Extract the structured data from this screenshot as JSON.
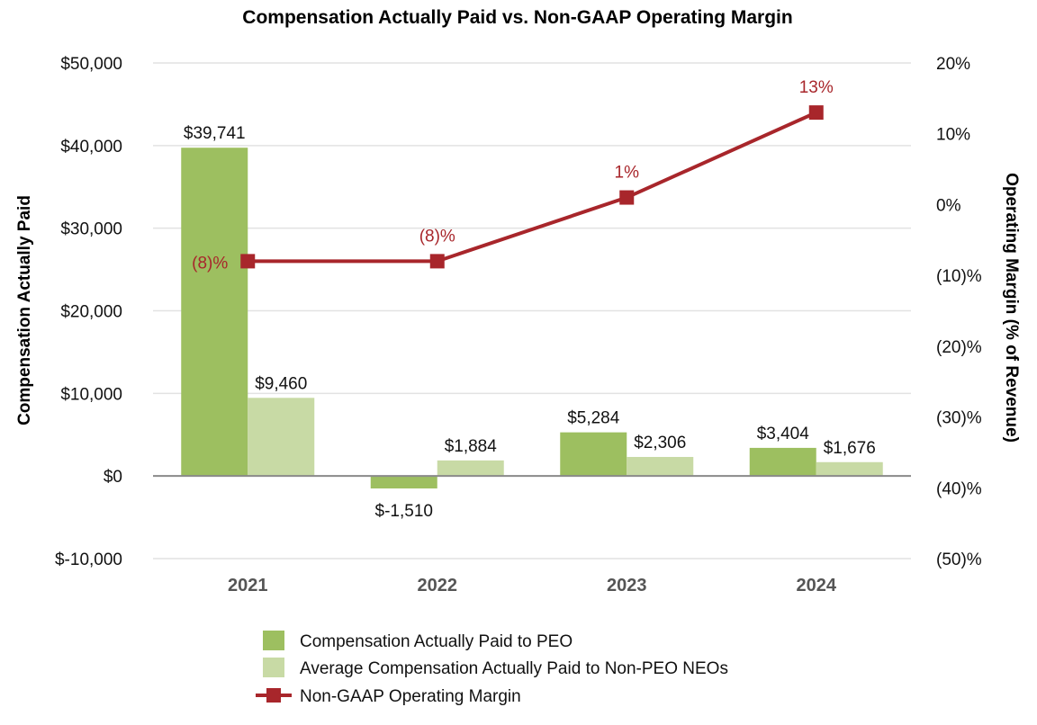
{
  "chart_data": {
    "type": "bar+line",
    "title": "Compensation Actually Paid vs. Non-GAAP Operating Margin",
    "categories": [
      "2021",
      "2022",
      "2023",
      "2024"
    ],
    "y_left": {
      "label": "Compensation Actually Paid",
      "range": [
        -10000,
        50000
      ],
      "ticks": [
        50000,
        40000,
        30000,
        20000,
        10000,
        0,
        -10000
      ],
      "tick_labels": [
        "$50,000",
        "$40,000",
        "$30,000",
        "$20,000",
        "$10,000",
        "$0",
        "$-10,000"
      ]
    },
    "y_right": {
      "label": "Operating Margin (% of Revenue)",
      "range": [
        -50,
        20
      ],
      "ticks": [
        20,
        10,
        0,
        -10,
        -20,
        -30,
        -40,
        -50
      ],
      "tick_labels": [
        "20%",
        "10%",
        "0%",
        "(10)%",
        "(20)%",
        "(30)%",
        "(40)%",
        "(50)%"
      ]
    },
    "series": [
      {
        "name": "Compensation Actually Paid to PEO",
        "type": "bar",
        "axis": "left",
        "color": "#9dbf60",
        "values": [
          39741,
          -1510,
          5284,
          3404
        ],
        "labels": [
          "$39,741",
          "$-1,510",
          "$5,284",
          "$3,404"
        ]
      },
      {
        "name": "Average Compensation Actually Paid to Non-PEO NEOs",
        "type": "bar",
        "axis": "left",
        "color": "#c8daa5",
        "values": [
          9460,
          1884,
          2306,
          1676
        ],
        "labels": [
          "$9,460",
          "$1,884",
          "$2,306",
          "$1,676"
        ]
      },
      {
        "name": "Non-GAAP Operating Margin",
        "type": "line",
        "axis": "right",
        "color": "#a8262b",
        "values": [
          -8,
          -8,
          1,
          13
        ],
        "labels": [
          "(8)%",
          "(8)%",
          "1%",
          "13%"
        ]
      }
    ],
    "legend": {
      "position": "bottom-center",
      "items": [
        "Compensation Actually Paid to PEO",
        "Average Compensation Actually Paid to Non-PEO NEOs",
        "Non-GAAP Operating Margin"
      ]
    }
  }
}
